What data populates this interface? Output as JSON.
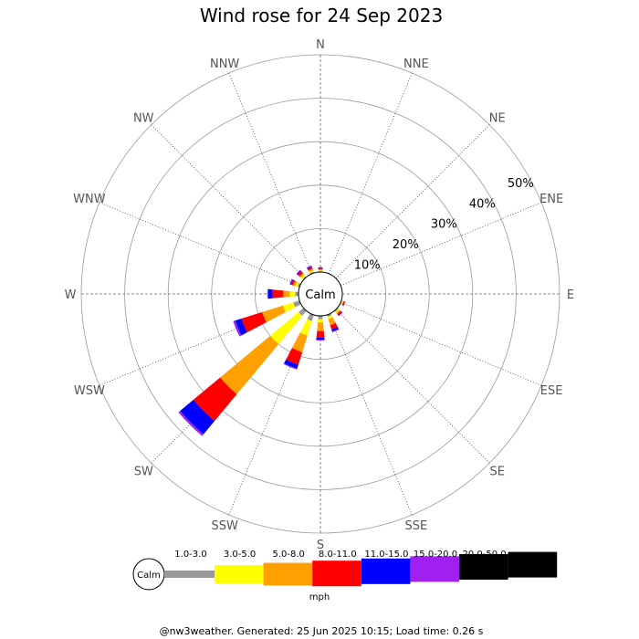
{
  "chart_data": {
    "type": "wind-rose",
    "title": "Wind rose for 24 Sep 2023",
    "unit": "mph",
    "calm_label": "Calm",
    "directions": [
      "N",
      "NNE",
      "NE",
      "ENE",
      "E",
      "ESE",
      "SE",
      "SSE",
      "S",
      "SSW",
      "SW",
      "WSW",
      "W",
      "WNW",
      "NW",
      "NNW"
    ],
    "ring_labels": [
      "10%",
      "20%",
      "30%",
      "40%",
      "50%"
    ],
    "r_max": 50,
    "speed_bins": [
      {
        "label": "Calm",
        "color": "#999999"
      },
      {
        "label": "1.0-3.0",
        "color": "#ffff00"
      },
      {
        "label": "3.0-5.0",
        "color": "#ffa000"
      },
      {
        "label": "5.0-8.0",
        "color": "#ff0000"
      },
      {
        "label": "8.0-11.0",
        "color": "#0000ff"
      },
      {
        "label": "11.0-15.0",
        "color": "#a020f0"
      },
      {
        "label": "15.0-20.0",
        "color": "#000000"
      },
      {
        "label": "20.0-50.0",
        "color": "#000000"
      }
    ],
    "series_colors": [
      "#999999",
      "#ffff00",
      "#ffa000",
      "#ff0000",
      "#0000ff",
      "#a020f0"
    ],
    "cumulative": {
      "SW": [
        1.5,
        10,
        25,
        33,
        37,
        37.5
      ],
      "WSW": [
        1.5,
        4,
        9,
        14,
        15.5,
        16
      ],
      "SSW": [
        1.5,
        5,
        9,
        12,
        13,
        13.2
      ],
      "W": [
        0.8,
        2,
        3.5,
        6,
        7,
        7.2
      ],
      "S": [
        0.8,
        1.5,
        3.5,
        5,
        5.5,
        5.7
      ],
      "SSE": [
        0.5,
        1,
        2.5,
        3.5,
        4,
        4.2
      ],
      "WNW": [
        0.5,
        1,
        1.5,
        2,
        2.2,
        2.4
      ],
      "NW": [
        0.3,
        0.8,
        1.2,
        1.8,
        2,
        2.2
      ],
      "NNW": [
        0.3,
        0.6,
        1,
        1.4,
        1.6,
        1.8
      ],
      "N": [
        0.2,
        0.4,
        0.6,
        0.8,
        1,
        1.1
      ],
      "SE": [
        0.3,
        0.6,
        1,
        1.3,
        1.5,
        1.6
      ],
      "ESE": [
        0.2,
        0.4,
        0.6,
        0.8,
        0.9,
        1
      ]
    }
  },
  "footer": "@nw3weather. Generated: 25 Jun 2025 10:15; Load time: 0.26 s"
}
